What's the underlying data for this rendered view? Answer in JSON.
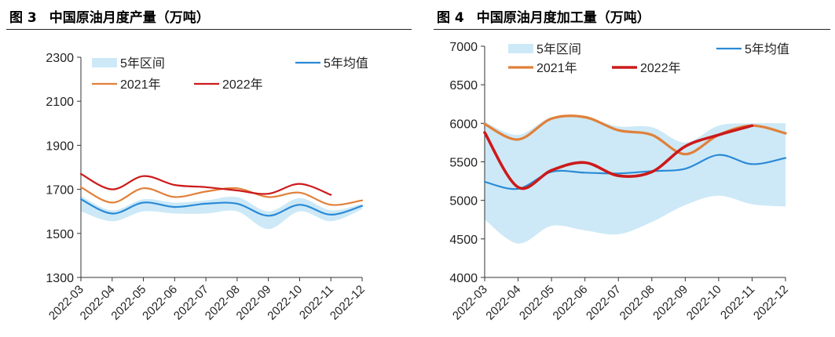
{
  "chart_data": [
    {
      "type": "line",
      "figure_label": "图 3",
      "title": "中国原油月度产量（万吨）",
      "categories": [
        "2022-03",
        "2022-04",
        "2022-05",
        "2022-06",
        "2022-07",
        "2022-08",
        "2022-09",
        "2022-10",
        "2022-11",
        "2022-12"
      ],
      "ylim": [
        1300,
        2300
      ],
      "yticks": [
        1300,
        1500,
        1700,
        1900,
        2100,
        2300
      ],
      "band": {
        "name": "5年区间",
        "color": "#cde9f7",
        "lower": [
          1600,
          1555,
          1600,
          1590,
          1590,
          1600,
          1520,
          1600,
          1555,
          1610
        ],
        "upper": [
          1670,
          1605,
          1655,
          1640,
          1650,
          1665,
          1600,
          1660,
          1605,
          1635
        ]
      },
      "series": [
        {
          "name": "5年均值",
          "color": "#2a8ad6",
          "width": 2.2,
          "values": [
            1655,
            1590,
            1640,
            1620,
            1635,
            1635,
            1580,
            1630,
            1585,
            1625
          ]
        },
        {
          "name": "2021年",
          "color": "#e0803a",
          "width": 2.2,
          "values": [
            1710,
            1640,
            1705,
            1665,
            1690,
            1705,
            1665,
            1685,
            1630,
            1650
          ]
        },
        {
          "name": "2022年",
          "color": "#cc1a1a",
          "width": 2.2,
          "values": [
            1770,
            1700,
            1760,
            1720,
            1710,
            1695,
            1680,
            1725,
            1675,
            null
          ]
        }
      ]
    },
    {
      "type": "line",
      "figure_label": "图 4",
      "title": "中国原油月度加工量（万吨）",
      "categories": [
        "2022-03",
        "2022-04",
        "2022-05",
        "2022-06",
        "2022-07",
        "2022-08",
        "2022-09",
        "2022-10",
        "2022-11",
        "2022-12"
      ],
      "ylim": [
        4000,
        7000
      ],
      "yticks": [
        4000,
        4500,
        5000,
        5500,
        6000,
        6500,
        7000
      ],
      "band": {
        "name": "5年区间",
        "color": "#cde9f7",
        "lower": [
          4750,
          4440,
          4670,
          4610,
          4560,
          4720,
          4940,
          5060,
          4950,
          4920
        ],
        "upper": [
          6020,
          5850,
          6080,
          6080,
          5960,
          5950,
          5750,
          5970,
          6000,
          6000
        ]
      },
      "series": [
        {
          "name": "5年均值",
          "color": "#2a8ad6",
          "width": 2.2,
          "values": [
            5240,
            5150,
            5370,
            5360,
            5350,
            5380,
            5410,
            5590,
            5470,
            5550
          ]
        },
        {
          "name": "2021年",
          "color": "#e0803a",
          "width": 3.2,
          "values": [
            5990,
            5790,
            6060,
            6080,
            5910,
            5850,
            5600,
            5850,
            5970,
            5870
          ]
        },
        {
          "name": "2022年",
          "color": "#cc1a1a",
          "width": 3.6,
          "values": [
            5880,
            5170,
            5390,
            5490,
            5320,
            5370,
            5700,
            5850,
            5970,
            null
          ]
        }
      ]
    }
  ]
}
